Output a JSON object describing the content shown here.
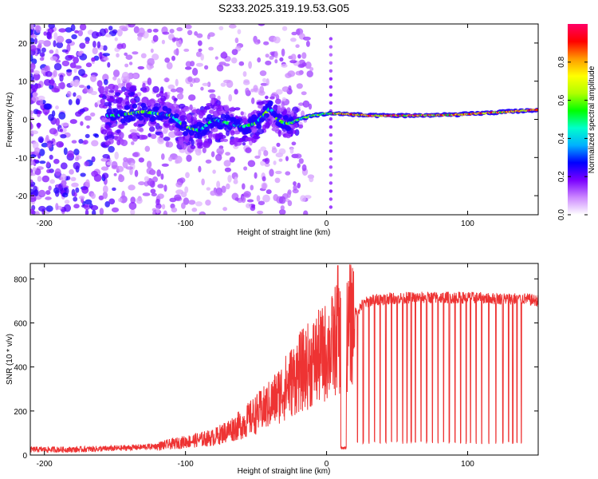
{
  "title": "S233.2025.319.19.53.G05",
  "chart_data": [
    {
      "type": "heatmap",
      "xlabel": "Height of straight line (km)",
      "ylabel": "Frequency (Hz)",
      "xlim": [
        -210,
        150
      ],
      "ylim": [
        -25,
        25
      ],
      "xticks": [
        -200,
        -100,
        0,
        100
      ],
      "yticks": [
        -20,
        -10,
        0,
        10,
        20
      ],
      "colorbar": {
        "label": "Normalized spectral amplitude",
        "range": [
          0,
          1
        ],
        "ticks": [
          "0.0",
          "0.2",
          "0.4",
          "0.6",
          "0.8"
        ],
        "colors": [
          "#ffffff",
          "#cc88ff",
          "#7a00ff",
          "#0000ff",
          "#00b0ff",
          "#00ffcc",
          "#00ff00",
          "#b0ff00",
          "#ffff00",
          "#ff9900",
          "#ff0000",
          "#ff0066"
        ]
      },
      "ridge": {
        "x": [
          -150,
          -130,
          -110,
          -100,
          -90,
          -80,
          -70,
          -60,
          -50,
          -40,
          -35,
          -30,
          -25,
          -20,
          -10,
          0,
          10,
          30,
          60,
          90,
          120,
          150
        ],
        "freq": [
          1,
          2,
          1,
          -2,
          -3,
          0,
          -1,
          -2,
          -1,
          3,
          0,
          -1,
          -1,
          0,
          1,
          1.5,
          1.5,
          1,
          1,
          1.2,
          1.8,
          2.5
        ]
      }
    },
    {
      "type": "line",
      "xlabel": "Height of straight line (km)",
      "ylabel": "SNR (10 * v/v)",
      "xlim": [
        -210,
        150
      ],
      "ylim": [
        0,
        870
      ],
      "xticks": [
        -200,
        -100,
        0,
        100
      ],
      "yticks": [
        0,
        200,
        400,
        600,
        800
      ],
      "series": [
        {
          "name": "SNR",
          "color": "#ee3333",
          "envelope": {
            "x": [
              -210,
              -180,
              -150,
              -120,
              -100,
              -80,
              -60,
              -40,
              -30,
              -20,
              -10,
              0,
              5,
              8,
              10,
              12,
              15,
              20,
              25,
              30,
              40,
              60,
              80,
              100,
              120,
              140,
              150
            ],
            "y": [
              25,
              25,
              30,
              40,
              60,
              80,
              140,
              230,
              300,
              370,
              420,
              470,
              500,
              560,
              520,
              470,
              560,
              640,
              680,
              700,
              710,
              715,
              715,
              715,
              710,
              710,
              700
            ]
          },
          "spike": {
            "x": 8,
            "y": 860
          },
          "notch": {
            "x_range": [
              10,
              14
            ],
            "y": 25
          },
          "dropouts": {
            "x": [
              22,
              26,
              30,
              34,
              38,
              42,
              46,
              50,
              54,
              57,
              60,
              63,
              67,
              71,
              75,
              79,
              83,
              87,
              91,
              95,
              99,
              102,
              106,
              110,
              115,
              120,
              125,
              129,
              132,
              135,
              138
            ],
            "y": 50
          }
        }
      ]
    }
  ]
}
